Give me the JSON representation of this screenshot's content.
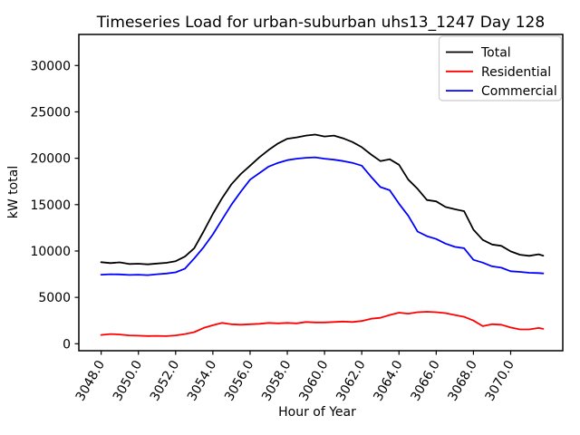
{
  "chart_data": {
    "type": "line",
    "title": "Timeseries Load for urban-suburban uhs13_1247  Day 128",
    "xlabel": "Hour of Year",
    "ylabel": "kW total",
    "legend": {
      "position": "upper-right",
      "border_color": "#cccccc"
    },
    "grid": false,
    "axes": {
      "xlim": [
        3046.8,
        3072.8
      ],
      "ylim": [
        -750,
        33350
      ],
      "plot": {
        "left": 87,
        "right": 621,
        "top": 38,
        "bottom": 387
      }
    },
    "xticks": [
      {
        "label": "3048.0",
        "value": 3048
      },
      {
        "label": "3050.0",
        "value": 3050
      },
      {
        "label": "3052.0",
        "value": 3052
      },
      {
        "label": "3054.0",
        "value": 3054
      },
      {
        "label": "3056.0",
        "value": 3056
      },
      {
        "label": "3058.0",
        "value": 3058
      },
      {
        "label": "3060.0",
        "value": 3060
      },
      {
        "label": "3062.0",
        "value": 3062
      },
      {
        "label": "3064.0",
        "value": 3064
      },
      {
        "label": "3066.0",
        "value": 3066
      },
      {
        "label": "3068.0",
        "value": 3068
      },
      {
        "label": "3070.0",
        "value": 3070
      }
    ],
    "yticks": [
      {
        "label": "0",
        "value": 0
      },
      {
        "label": "5000",
        "value": 5000
      },
      {
        "label": "10000",
        "value": 10000
      },
      {
        "label": "15000",
        "value": 15000
      },
      {
        "label": "20000",
        "value": 20000
      },
      {
        "label": "25000",
        "value": 25000
      },
      {
        "label": "30000",
        "value": 30000
      }
    ],
    "x": [
      3048,
      3048.5,
      3049,
      3049.5,
      3050,
      3050.5,
      3051,
      3051.5,
      3052,
      3052.5,
      3053,
      3053.5,
      3054,
      3054.5,
      3055,
      3055.5,
      3056,
      3056.5,
      3057,
      3057.5,
      3058,
      3058.5,
      3059,
      3059.5,
      3060,
      3060.5,
      3061,
      3061.5,
      3062,
      3062.5,
      3063,
      3063.5,
      3064,
      3064.5,
      3065,
      3065.5,
      3066,
      3066.5,
      3067,
      3067.5,
      3068,
      3068.5,
      3069,
      3069.5,
      3070,
      3070.5,
      3071,
      3071.5,
      3071.75
    ],
    "series": [
      {
        "name": "Total",
        "color": "#000000",
        "values": [
          8800,
          8700,
          8780,
          8600,
          8630,
          8560,
          8650,
          8730,
          8900,
          9400,
          10300,
          12100,
          14000,
          15700,
          17200,
          18300,
          19200,
          20100,
          20900,
          21600,
          22100,
          22250,
          22450,
          22550,
          22350,
          22450,
          22150,
          21750,
          21200,
          20400,
          19700,
          19900,
          19300,
          17700,
          16700,
          15500,
          15350,
          14750,
          14500,
          14300,
          12300,
          11200,
          10700,
          10550,
          9960,
          9600,
          9480,
          9650,
          9500
        ]
      },
      {
        "name": "Residential",
        "color": "#ff0000",
        "values": [
          950,
          1050,
          1000,
          900,
          870,
          830,
          850,
          820,
          900,
          1050,
          1250,
          1700,
          2000,
          2250,
          2100,
          2050,
          2100,
          2150,
          2250,
          2200,
          2250,
          2200,
          2350,
          2300,
          2300,
          2350,
          2400,
          2350,
          2450,
          2700,
          2800,
          3100,
          3350,
          3250,
          3400,
          3450,
          3400,
          3300,
          3100,
          2900,
          2500,
          1900,
          2100,
          2050,
          1750,
          1550,
          1550,
          1700,
          1600
        ]
      },
      {
        "name": "Commercial",
        "color": "#0000ff",
        "values": [
          7450,
          7500,
          7480,
          7420,
          7450,
          7400,
          7500,
          7570,
          7700,
          8100,
          9200,
          10400,
          11800,
          13400,
          15000,
          16400,
          17700,
          18400,
          19100,
          19500,
          19800,
          19950,
          20050,
          20100,
          19950,
          19850,
          19700,
          19500,
          19200,
          18000,
          16900,
          16550,
          15100,
          13800,
          12100,
          11600,
          11300,
          10800,
          10450,
          10300,
          9050,
          8750,
          8350,
          8200,
          7820,
          7750,
          7650,
          7620,
          7580
        ]
      }
    ]
  }
}
